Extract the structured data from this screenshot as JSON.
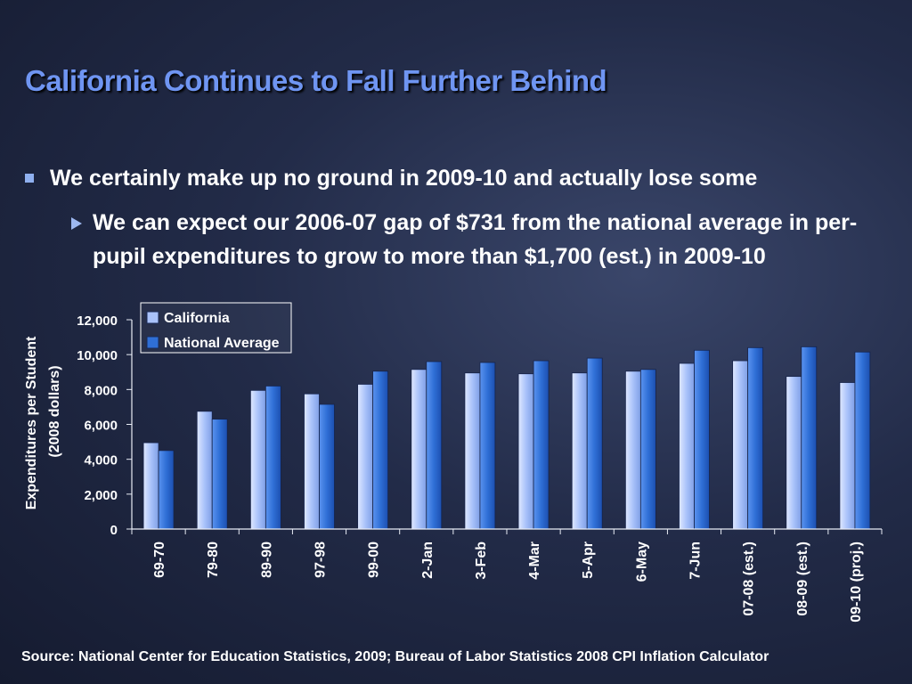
{
  "slide": {
    "title": "California Continues to Fall Further Behind",
    "bullet_1": "We certainly make up no ground in 2009-10 and actually lose some",
    "bullet_2": "We can expect our 2006-07 gap of $731 from the national average in per-pupil expenditures to grow to more than $1,700 (est.) in 2009-10",
    "source": "Source: National Center for Education Statistics, 2009; Bureau of Labor Statistics 2008 CPI Inflation Calculator"
  },
  "colors": {
    "title": "#6f95f2",
    "california": "#a9c2fa",
    "national": "#2f6fd6",
    "axis": "#e8ecf5"
  },
  "chart_data": {
    "type": "bar",
    "title": "",
    "xlabel": "",
    "ylabel_line1": "Expenditures per Student",
    "ylabel_line2": "(2008 dollars)",
    "ylim": [
      0,
      12000
    ],
    "yticks": [
      0,
      2000,
      4000,
      6000,
      8000,
      10000,
      12000
    ],
    "ytick_labels": [
      "0",
      "2,000",
      "4,000",
      "6,000",
      "8,000",
      "10,000",
      "12,000"
    ],
    "legend_position": "top-left",
    "grid": false,
    "categories": [
      "69-70",
      "79-80",
      "89-90",
      "97-98",
      "99-00",
      "2-Jan",
      "3-Feb",
      "4-Mar",
      "5-Apr",
      "6-May",
      "7-Jun",
      "07-08 (est.)",
      "08-09 (est.)",
      "09-10 (proj.)"
    ],
    "series": [
      {
        "name": "California",
        "values": [
          4950,
          6750,
          7950,
          7750,
          8300,
          9150,
          8950,
          8900,
          8950,
          9050,
          9500,
          9650,
          8750,
          8400
        ]
      },
      {
        "name": "National Average",
        "values": [
          4500,
          6300,
          8200,
          7150,
          9050,
          9600,
          9550,
          9650,
          9800,
          9150,
          10250,
          10400,
          10450,
          10150
        ]
      }
    ]
  }
}
